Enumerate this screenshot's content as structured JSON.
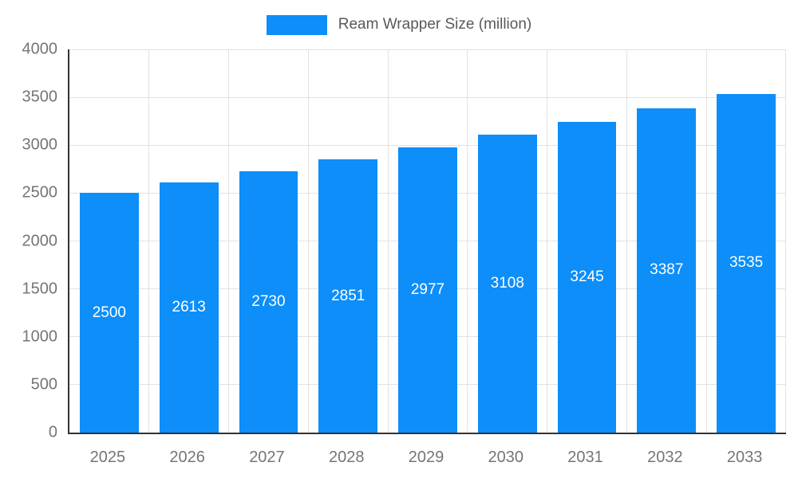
{
  "chart_data": {
    "type": "bar",
    "title": "",
    "legend_label": "Ream Wrapper Size (million)",
    "legend_position": "top",
    "categories": [
      "2025",
      "2026",
      "2027",
      "2028",
      "2029",
      "2030",
      "2031",
      "2032",
      "2033"
    ],
    "series": [
      {
        "name": "Ream Wrapper Size (million)",
        "values": [
          2500,
          2613,
          2730,
          2851,
          2977,
          3108,
          3245,
          3387,
          3535
        ]
      }
    ],
    "ylim": [
      0,
      4000
    ],
    "yticks": [
      0,
      500,
      1000,
      1500,
      2000,
      2500,
      3000,
      3500,
      4000
    ],
    "grid": true,
    "bar_labels_visible": true,
    "colors": {
      "bar": "#0d8ef8",
      "bar_label": "#ffffff",
      "axis_line": "#333333",
      "gridline": "#e2e2e2",
      "tick_text": "#757575",
      "legend_text": "#595959",
      "background": "#ffffff"
    }
  }
}
